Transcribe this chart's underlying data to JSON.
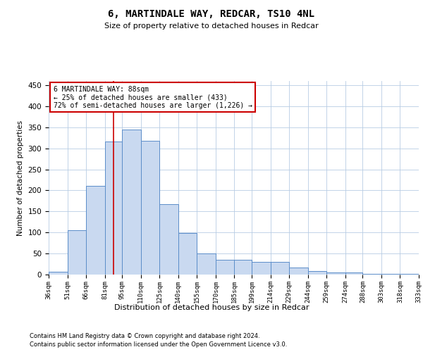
{
  "title": "6, MARTINDALE WAY, REDCAR, TS10 4NL",
  "subtitle": "Size of property relative to detached houses in Redcar",
  "xlabel": "Distribution of detached houses by size in Redcar",
  "ylabel": "Number of detached properties",
  "categories": [
    "36sqm",
    "51sqm",
    "66sqm",
    "81sqm",
    "95sqm",
    "110sqm",
    "125sqm",
    "140sqm",
    "155sqm",
    "170sqm",
    "185sqm",
    "199sqm",
    "214sqm",
    "229sqm",
    "244sqm",
    "259sqm",
    "274sqm",
    "288sqm",
    "303sqm",
    "318sqm",
    "333sqm"
  ],
  "values": [
    7,
    105,
    210,
    316,
    344,
    318,
    167,
    98,
    50,
    35,
    35,
    30,
    30,
    16,
    9,
    5,
    5,
    2,
    1,
    1
  ],
  "bar_color": "#c9d9f0",
  "bar_edge_color": "#5b8dc9",
  "property_line_x": 88,
  "bin_edges": [
    36,
    51,
    66,
    81,
    95,
    110,
    125,
    140,
    155,
    170,
    185,
    199,
    214,
    229,
    244,
    259,
    274,
    288,
    303,
    318,
    333
  ],
  "annotation_line1": "6 MARTINDALE WAY: 88sqm",
  "annotation_line2": "← 25% of detached houses are smaller (433)",
  "annotation_line3": "72% of semi-detached houses are larger (1,226) →",
  "red_line_color": "#cc0000",
  "grid_color": "#b8cce4",
  "background_color": "#ffffff",
  "ylim_max": 460,
  "yticks": [
    0,
    50,
    100,
    150,
    200,
    250,
    300,
    350,
    400,
    450
  ],
  "footer_line1": "Contains HM Land Registry data © Crown copyright and database right 2024.",
  "footer_line2": "Contains public sector information licensed under the Open Government Licence v3.0."
}
